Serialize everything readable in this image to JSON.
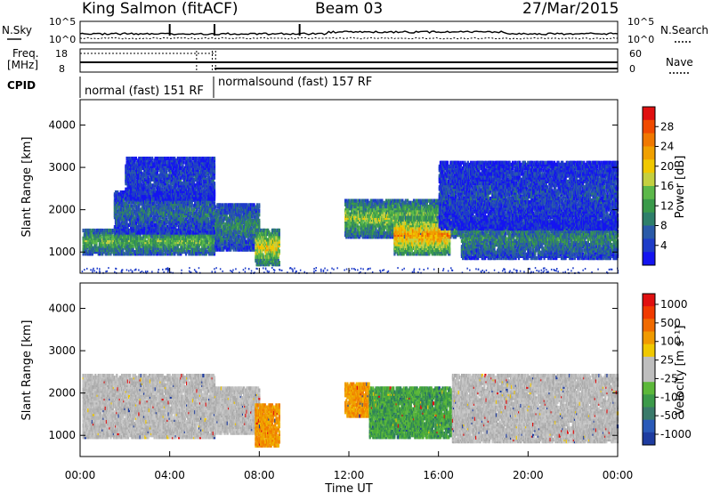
{
  "header": {
    "station": "King Salmon (fitACF)",
    "beam": "Beam 03",
    "date": "27/Mar/2015"
  },
  "aux_labels": {
    "nsky": "N.Sky",
    "nsearch": "N.Search",
    "freq_line1": "Freq.",
    "freq_line2": "[MHz]",
    "nave": "Nave",
    "cpid": "CPID",
    "noise_tick_top": "10^5",
    "noise_tick_bottom": "10^0",
    "freq_tick_top": "18",
    "freq_tick_bottom": "8",
    "nave_tick_top": "60",
    "nave_tick_bottom": "0"
  },
  "cpid_segments": [
    {
      "label": "normal (fast) 151 RF",
      "start_hour": 0,
      "end_hour": 6
    },
    {
      "label": "normalsound (fast) 157 RF",
      "start_hour": 6,
      "end_hour": 24
    }
  ],
  "chart_data": [
    {
      "type": "heatmap",
      "panel": "power",
      "xlabel": "",
      "ylabel": "Slant Range [km]",
      "xlim": [
        0,
        24
      ],
      "ylim": [
        500,
        4600
      ],
      "yticks": [
        1000,
        2000,
        3000,
        4000
      ],
      "colorbar": {
        "label": "Power [dB]",
        "range": [
          0,
          32
        ],
        "ticks": [
          4,
          8,
          12,
          16,
          20,
          24,
          28
        ],
        "colors": [
          "#1414f0",
          "#1e3cc8",
          "#2a5aa8",
          "#2e7f6a",
          "#3a9a4a",
          "#5cb84a",
          "#c4d040",
          "#f0c800",
          "#f0a000",
          "#f07800",
          "#f04a00",
          "#e01010"
        ]
      },
      "regions": [
        {
          "t0": 0.1,
          "t1": 6.0,
          "r0": 1000,
          "r1": 1600,
          "level": 14
        },
        {
          "t0": 1.5,
          "t1": 6.0,
          "r0": 1500,
          "r1": 2500,
          "level": 8
        },
        {
          "t0": 2.0,
          "t1": 6.0,
          "r0": 2300,
          "r1": 3300,
          "level": 5
        },
        {
          "t0": 6.0,
          "t1": 8.0,
          "r0": 1100,
          "r1": 2200,
          "level": 10
        },
        {
          "t0": 7.8,
          "t1": 8.9,
          "r0": 750,
          "r1": 1600,
          "level": 20
        },
        {
          "t0": 11.8,
          "t1": 17.0,
          "r0": 1400,
          "r1": 2300,
          "level": 16
        },
        {
          "t0": 14.0,
          "t1": 16.5,
          "r0": 1000,
          "r1": 1900,
          "level": 24
        },
        {
          "t0": 17.0,
          "t1": 24.0,
          "r0": 900,
          "r1": 1800,
          "level": 10
        },
        {
          "t0": 16.0,
          "t1": 24.0,
          "r0": 1600,
          "r1": 3200,
          "level": 5
        }
      ]
    },
    {
      "type": "heatmap",
      "panel": "velocity",
      "xlabel": "Time UT",
      "ylabel": "Slant Range [km]",
      "xlim": [
        0,
        24
      ],
      "ylim": [
        500,
        4600
      ],
      "yticks": [
        1000,
        2000,
        3000,
        4000
      ],
      "x_tick_labels": [
        "00:00",
        "04:00",
        "08:00",
        "12:00",
        "16:00",
        "20:00",
        "00:00"
      ],
      "x_tick_hours": [
        0,
        4,
        8,
        12,
        16,
        20,
        24
      ],
      "colorbar": {
        "label": "Velocity [m s⁻¹]",
        "ticks": [
          "1000",
          "500",
          "100",
          "25",
          "-25",
          "-100",
          "-500",
          "-1000"
        ],
        "colors": [
          "#1e3ca0",
          "#2a5ab8",
          "#3a7a6a",
          "#3c9a4a",
          "#5cb83a",
          "#bebebe",
          "#bebebe",
          "#f0c800",
          "#f09a00",
          "#f06a00",
          "#f03a00",
          "#e01010"
        ]
      },
      "regions": [
        {
          "t0": 0.1,
          "t1": 6.0,
          "r0": 1000,
          "r1": 2500,
          "kind": "gray"
        },
        {
          "t0": 6.0,
          "t1": 8.0,
          "r0": 1100,
          "r1": 2200,
          "kind": "gray"
        },
        {
          "t0": 7.8,
          "t1": 8.9,
          "r0": 800,
          "r1": 1800,
          "kind": "orange"
        },
        {
          "t0": 11.8,
          "t1": 12.9,
          "r0": 1500,
          "r1": 2300,
          "kind": "orange"
        },
        {
          "t0": 12.9,
          "t1": 16.6,
          "r0": 1000,
          "r1": 2200,
          "kind": "green"
        },
        {
          "t0": 16.6,
          "t1": 24.0,
          "r0": 900,
          "r1": 2500,
          "kind": "gray"
        }
      ]
    }
  ]
}
